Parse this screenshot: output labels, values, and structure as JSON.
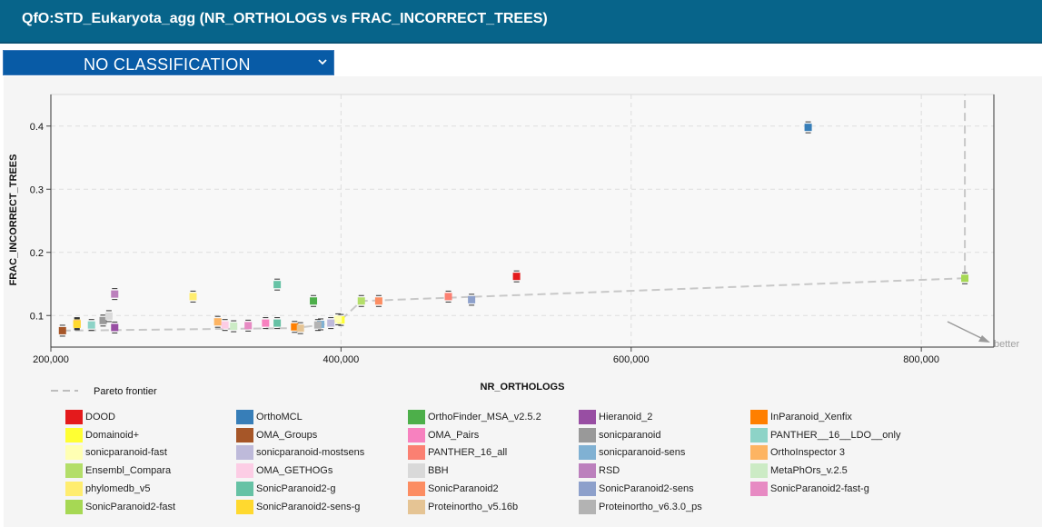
{
  "header": {
    "title": "QfO:STD_Eukaryota_agg (NR_ORTHOLOGS vs FRAC_INCORRECT_TREES)"
  },
  "classification": {
    "selected": "NO CLASSIFICATION"
  },
  "legend_pareto": "Pareto frontier",
  "better_label": "better",
  "chart_data": {
    "type": "scatter",
    "xlabel": "NR_ORTHOLOGS",
    "ylabel": "FRAC_INCORRECT_TREES",
    "xlim": [
      200000,
      850000
    ],
    "ylim": [
      0.05,
      0.45
    ],
    "xticks": [
      200000,
      400000,
      600000,
      800000
    ],
    "xtick_labels": [
      "200,000",
      "400,000",
      "600,000",
      "800,000"
    ],
    "yticks": [
      0.1,
      0.2,
      0.3,
      0.4
    ],
    "ytick_labels": [
      "0.1",
      "0.2",
      "0.3",
      "0.4"
    ],
    "grid": true,
    "series": [
      {
        "name": "DOOD",
        "color": "#e41a1c",
        "x": 521000,
        "y": 0.162
      },
      {
        "name": "OrthoMCL",
        "color": "#377eb8",
        "x": 722000,
        "y": 0.398
      },
      {
        "name": "OrthoFinder_MSA_v2.5.2",
        "color": "#4daf4a",
        "x": 381000,
        "y": 0.123
      },
      {
        "name": "Hieranoid_2",
        "color": "#984ea3",
        "x": 244000,
        "y": 0.081
      },
      {
        "name": "InParanoid_Xenfix",
        "color": "#ff7f00",
        "x": 368000,
        "y": 0.082
      },
      {
        "name": "Domainoid+",
        "color": "#ffff33",
        "x": 400000,
        "y": 0.093
      },
      {
        "name": "OMA_Groups",
        "color": "#a65628",
        "x": 208000,
        "y": 0.076
      },
      {
        "name": "OMA_Pairs",
        "color": "#f781bf",
        "x": 348000,
        "y": 0.088
      },
      {
        "name": "sonicparanoid",
        "color": "#999999",
        "x": 236000,
        "y": 0.092
      },
      {
        "name": "PANTHER__16__LDO__only",
        "color": "#8dd3c7",
        "x": 228000,
        "y": 0.085
      },
      {
        "name": "sonicparanoid-fast",
        "color": "#ffffb3",
        "x": 398000,
        "y": 0.094
      },
      {
        "name": "sonicparanoid-mostsens",
        "color": "#bebada",
        "x": 393000,
        "y": 0.088
      },
      {
        "name": "PANTHER_16_all",
        "color": "#fb8072",
        "x": 474000,
        "y": 0.13
      },
      {
        "name": "sonicparanoid-sens",
        "color": "#80b1d3",
        "x": 386000,
        "y": 0.086
      },
      {
        "name": "OrthoInspector 3",
        "color": "#fdb462",
        "x": 315000,
        "y": 0.09
      },
      {
        "name": "Ensembl_Compara",
        "color": "#b3de69",
        "x": 414000,
        "y": 0.123
      },
      {
        "name": "OMA_GETHOGs",
        "color": "#fccde5",
        "x": 320000,
        "y": 0.085
      },
      {
        "name": "BBH",
        "color": "#d9d9d9",
        "x": 240000,
        "y": 0.099
      },
      {
        "name": "RSD",
        "color": "#bc80bd",
        "x": 244000,
        "y": 0.134
      },
      {
        "name": "MetaPhOrs_v.2.5",
        "color": "#ccebc5",
        "x": 326000,
        "y": 0.083
      },
      {
        "name": "phylomedb_v5",
        "color": "#ffed6f",
        "x": 298000,
        "y": 0.13
      },
      {
        "name": "SonicParanoid2-g",
        "color": "#66c2a5",
        "x": 356000,
        "y": 0.149
      },
      {
        "name": "SonicParanoid2",
        "color": "#fc8d62",
        "x": 426000,
        "y": 0.123
      },
      {
        "name": "SonicParanoid2-sens",
        "color": "#8da0cb",
        "x": 490000,
        "y": 0.125
      },
      {
        "name": "SonicParanoid2-fast-g",
        "color": "#e78ac3",
        "x": 336000,
        "y": 0.084
      },
      {
        "name": "SonicParanoid2-fast",
        "color": "#a6d854",
        "x": 830000,
        "y": 0.159
      },
      {
        "name": "SonicParanoid2-sens-g",
        "color": "#ffd92f",
        "x": 218000,
        "y": 0.086
      },
      {
        "name": "Proteinortho_v5.16b",
        "color": "#e5c494",
        "x": 372000,
        "y": 0.08
      },
      {
        "name": "Proteinortho_v6.3.0_ps",
        "color": "#b3b3b3",
        "x": 384000,
        "y": 0.085
      }
    ],
    "extra_points": [
      {
        "color": "#66c2a5",
        "x": 356000,
        "y": 0.088
      },
      {
        "color": "#ffed6f",
        "x": 218000,
        "y": 0.088
      },
      {
        "color": "#fdb462",
        "x": 218000,
        "y": 0.087
      }
    ],
    "pareto_frontier": {
      "x": [
        208000,
        368000,
        386000,
        400000,
        414000,
        830000,
        830000
      ],
      "y": [
        0.076,
        0.08,
        0.085,
        0.093,
        0.123,
        0.159,
        0.45
      ]
    }
  }
}
